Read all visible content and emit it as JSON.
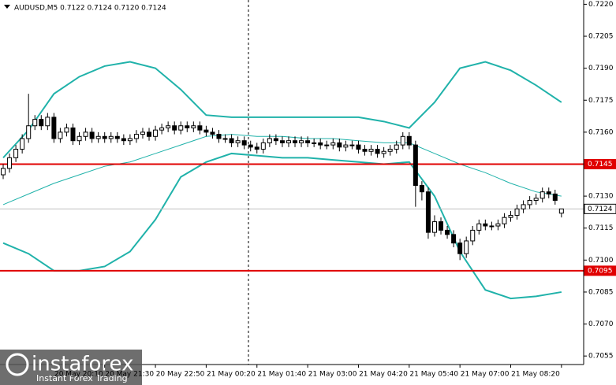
{
  "chart_data": {
    "type": "candlestick",
    "title": "AUDUSD,M5  0.7122 0.7124 0.7120 0.7124",
    "watermark": {
      "brand": "instaforex",
      "tagline": "Instant Forex Trading"
    },
    "open": [
      0.714,
      0.7143,
      0.7148,
      0.7152,
      0.7157,
      0.7163,
      0.7166,
      0.7163,
      0.7167,
      0.7157,
      0.716,
      0.7162,
      0.7156,
      0.7158,
      0.716,
      0.7157,
      0.7158,
      0.7157,
      0.7158,
      0.7157,
      0.7156,
      0.7157,
      0.7159,
      0.716,
      0.7158,
      0.7161,
      0.7162,
      0.7163,
      0.7161,
      0.7163,
      0.7162,
      0.7163,
      0.7161,
      0.716,
      0.7159,
      0.7157,
      0.7157,
      0.7155,
      0.7156,
      0.7154,
      0.7153,
      0.7152,
      0.7155,
      0.7157,
      0.7156,
      0.7155,
      0.7156,
      0.7155,
      0.7156,
      0.7155,
      0.7155,
      0.7154,
      0.7154,
      0.7155,
      0.7153,
      0.7154,
      0.7154,
      0.7152,
      0.7151,
      0.7152,
      0.715,
      0.7151,
      0.7152,
      0.7154,
      0.7158,
      0.7154,
      0.7135,
      0.7132,
      0.7113,
      0.7118,
      0.7114,
      0.7112,
      0.7108,
      0.7103,
      0.7109,
      0.7114,
      0.7117,
      0.7116,
      0.7116,
      0.7117,
      0.712,
      0.7121,
      0.7124,
      0.7126,
      0.7128,
      0.7129,
      0.7132,
      0.7131,
      0.7122
    ],
    "high": [
      0.7145,
      0.715,
      0.7154,
      0.7159,
      0.7178,
      0.7168,
      0.7168,
      0.7169,
      0.7169,
      0.7162,
      0.7164,
      0.7164,
      0.716,
      0.7162,
      0.7162,
      0.716,
      0.716,
      0.716,
      0.716,
      0.7159,
      0.7159,
      0.7161,
      0.7162,
      0.7162,
      0.7163,
      0.7164,
      0.7165,
      0.7165,
      0.7165,
      0.7165,
      0.7165,
      0.7165,
      0.7163,
      0.7162,
      0.7161,
      0.7159,
      0.7159,
      0.7158,
      0.7158,
      0.7156,
      0.7155,
      0.7157,
      0.7159,
      0.7159,
      0.7158,
      0.7158,
      0.7158,
      0.7158,
      0.7158,
      0.7157,
      0.7157,
      0.7156,
      0.7157,
      0.7157,
      0.7156,
      0.7156,
      0.7156,
      0.7154,
      0.7154,
      0.7154,
      0.7153,
      0.7154,
      0.7156,
      0.716,
      0.716,
      0.7156,
      0.7137,
      0.7134,
      0.7121,
      0.712,
      0.7116,
      0.7114,
      0.711,
      0.7111,
      0.7116,
      0.7119,
      0.7119,
      0.7118,
      0.7119,
      0.7122,
      0.7123,
      0.7126,
      0.7128,
      0.713,
      0.7131,
      0.7134,
      0.7134,
      0.7133,
      0.7124
    ],
    "low": [
      0.7138,
      0.7141,
      0.7146,
      0.715,
      0.7155,
      0.7161,
      0.7161,
      0.7161,
      0.7155,
      0.7155,
      0.7158,
      0.7154,
      0.7154,
      0.7156,
      0.7155,
      0.7155,
      0.7155,
      0.7155,
      0.7155,
      0.7154,
      0.7154,
      0.7155,
      0.7157,
      0.7156,
      0.7156,
      0.7159,
      0.716,
      0.7159,
      0.7159,
      0.716,
      0.716,
      0.7159,
      0.7158,
      0.7157,
      0.7155,
      0.7155,
      0.7153,
      0.7153,
      0.7152,
      0.7151,
      0.715,
      0.715,
      0.7153,
      0.7154,
      0.7153,
      0.7153,
      0.7153,
      0.7153,
      0.7153,
      0.7153,
      0.7152,
      0.7152,
      0.7152,
      0.7151,
      0.7151,
      0.7152,
      0.715,
      0.7149,
      0.7149,
      0.7148,
      0.7148,
      0.7149,
      0.715,
      0.7152,
      0.7152,
      0.7125,
      0.7128,
      0.711,
      0.7111,
      0.7112,
      0.711,
      0.7106,
      0.71,
      0.7101,
      0.7107,
      0.7112,
      0.7114,
      0.7114,
      0.7114,
      0.7115,
      0.7118,
      0.7119,
      0.7122,
      0.7124,
      0.7126,
      0.7127,
      0.7129,
      0.7126,
      0.712
    ],
    "close": [
      0.7143,
      0.7148,
      0.7152,
      0.7157,
      0.7163,
      0.7166,
      0.7163,
      0.7167,
      0.7157,
      0.716,
      0.7162,
      0.7156,
      0.7158,
      0.716,
      0.7157,
      0.7158,
      0.7157,
      0.7158,
      0.7157,
      0.7156,
      0.7157,
      0.7159,
      0.716,
      0.7158,
      0.7161,
      0.7162,
      0.7163,
      0.7161,
      0.7163,
      0.7162,
      0.7163,
      0.7161,
      0.716,
      0.7159,
      0.7157,
      0.7157,
      0.7155,
      0.7156,
      0.7154,
      0.7153,
      0.7152,
      0.7155,
      0.7157,
      0.7156,
      0.7155,
      0.7156,
      0.7155,
      0.7156,
      0.7155,
      0.7155,
      0.7154,
      0.7154,
      0.7155,
      0.7153,
      0.7154,
      0.7154,
      0.7152,
      0.7151,
      0.7152,
      0.715,
      0.7151,
      0.7152,
      0.7154,
      0.7158,
      0.7154,
      0.7135,
      0.7132,
      0.7113,
      0.7118,
      0.7114,
      0.7112,
      0.7108,
      0.7103,
      0.7109,
      0.7114,
      0.7117,
      0.7116,
      0.7116,
      0.7117,
      0.712,
      0.7121,
      0.7124,
      0.7126,
      0.7128,
      0.7129,
      0.7132,
      0.7131,
      0.7128,
      0.7124
    ],
    "candle_color": "#000000",
    "bands": {
      "color": "#20b2aa",
      "x": [
        0,
        4,
        8,
        12,
        16,
        20,
        24,
        28,
        32,
        36,
        40,
        44,
        48,
        52,
        56,
        60,
        64,
        68,
        72,
        76,
        80,
        84,
        88
      ],
      "upper": [
        0.7148,
        0.7161,
        0.7178,
        0.7186,
        0.7191,
        0.7193,
        0.719,
        0.718,
        0.7168,
        0.7167,
        0.7167,
        0.7167,
        0.7167,
        0.7167,
        0.7167,
        0.7165,
        0.7162,
        0.7174,
        0.719,
        0.7193,
        0.7189,
        0.7182,
        0.7174
      ],
      "middle": [
        0.7126,
        0.7131,
        0.7136,
        0.714,
        0.7144,
        0.7146,
        0.715,
        0.7154,
        0.7158,
        0.7159,
        0.7158,
        0.7158,
        0.7157,
        0.7157,
        0.7156,
        0.7155,
        0.7155,
        0.715,
        0.7145,
        0.7141,
        0.7136,
        0.7132,
        0.713
      ],
      "lower": [
        0.7108,
        0.7103,
        0.7095,
        0.7095,
        0.7097,
        0.7104,
        0.7119,
        0.7139,
        0.7146,
        0.715,
        0.7149,
        0.7148,
        0.7148,
        0.7147,
        0.7146,
        0.7145,
        0.7146,
        0.713,
        0.7104,
        0.7086,
        0.7082,
        0.7083,
        0.7085
      ]
    },
    "hlines": [
      {
        "value": 0.7145,
        "color": "#e00000"
      },
      {
        "value": 0.7095,
        "color": "#e00000"
      },
      {
        "value": 0.7124,
        "color": "#c0c0c0"
      }
    ],
    "ylim": [
      0.7051,
      0.7222
    ],
    "yticks": [
      {
        "value": 0.722,
        "label": "0.7220"
      },
      0.7205,
      {
        "value": 0.719,
        "label": "0.7190"
      },
      0.7175,
      {
        "value": 0.716,
        "label": "0.7160"
      },
      {
        "value": 0.713,
        "label": "0.7130"
      },
      0.7115,
      {
        "value": 0.71,
        "label": "0.7100"
      },
      0.7085,
      {
        "value": 0.707,
        "label": "0.7070"
      },
      0.7055
    ],
    "xlim": [
      -0.5,
      91.5
    ],
    "xticks": [
      {
        "value": 16,
        "label": "20 May 20:10"
      },
      {
        "value": 24,
        "label": "20 May 21:30"
      },
      {
        "value": 32,
        "label": "20 May 22:50"
      },
      {
        "value": 40,
        "label": "21 May 00:20"
      },
      {
        "value": 48,
        "label": "21 May 01:40"
      },
      {
        "value": 56,
        "label": "21 May 03:00"
      },
      {
        "value": 64,
        "label": "21 May 04:20"
      },
      {
        "value": 72,
        "label": "21 May 05:40"
      },
      {
        "value": 80,
        "label": "21 May 07:00"
      },
      {
        "value": 88,
        "label": "21 May 08:20"
      }
    ]
  }
}
